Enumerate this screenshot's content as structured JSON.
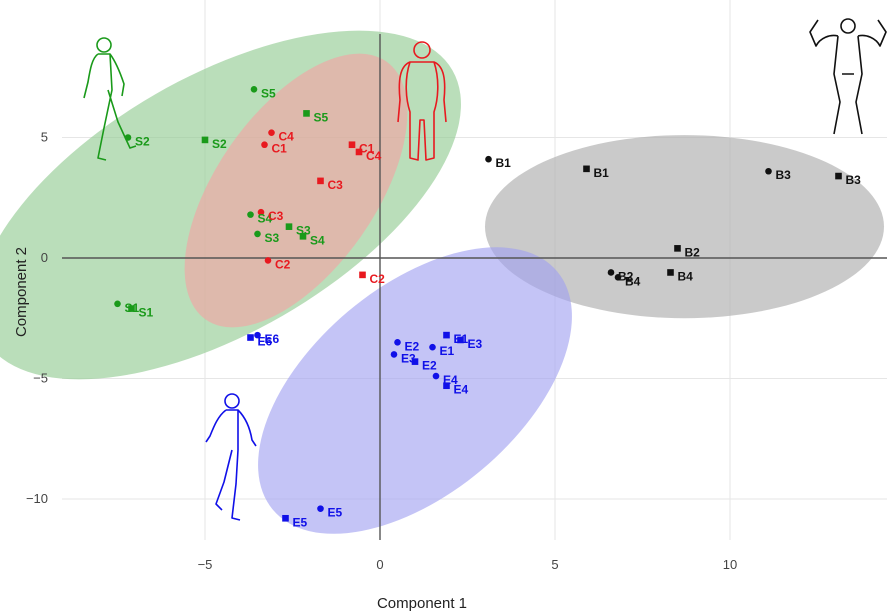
{
  "chart_data": {
    "type": "scatter",
    "title": "",
    "xlabel": "Component 1",
    "ylabel": "Component 2",
    "xlim": [
      -10.8,
      14.4
    ],
    "ylim": [
      -12.3,
      9.4
    ],
    "x_ticks": [
      -5,
      0,
      5,
      10
    ],
    "y_ticks": [
      -10,
      -5,
      0,
      5
    ],
    "x_tick_labels": [
      "−5",
      "0",
      "5",
      "10"
    ],
    "y_tick_labels": [
      "−10",
      "−5",
      "0",
      "5"
    ],
    "grid": true,
    "groups": [
      {
        "name": "S",
        "color": "#1a9a1a",
        "fill": "#8fca8f",
        "icon": "runner-icon",
        "ellipse": {
          "cx": -4.6,
          "cy": 2.2,
          "rx": 7.7,
          "ry": 5.3,
          "angle_deg": 30
        },
        "points": [
          {
            "label": "S1",
            "marker": "circle",
            "x": -7.5,
            "y": -1.9
          },
          {
            "label": "S1",
            "marker": "square",
            "x": -7.1,
            "y": -2.1
          },
          {
            "label": "S2",
            "marker": "circle",
            "x": -7.2,
            "y": 5.0
          },
          {
            "label": "S2",
            "marker": "square",
            "x": -5.0,
            "y": 4.9
          },
          {
            "label": "S3",
            "marker": "circle",
            "x": -3.5,
            "y": 1.0
          },
          {
            "label": "S3",
            "marker": "square",
            "x": -2.6,
            "y": 1.3
          },
          {
            "label": "S4",
            "marker": "circle",
            "x": -3.7,
            "y": 1.8
          },
          {
            "label": "S4",
            "marker": "square",
            "x": -2.2,
            "y": 0.9
          },
          {
            "label": "S5",
            "marker": "circle",
            "x": -3.6,
            "y": 7.0
          },
          {
            "label": "S5",
            "marker": "square",
            "x": -2.1,
            "y": 6.0
          }
        ]
      },
      {
        "name": "C",
        "color": "#e8191f",
        "fill": "#f4a3a3",
        "icon": "heavy-person-icon",
        "ellipse": {
          "cx": -2.4,
          "cy": 2.8,
          "rx": 4.5,
          "ry": 3.3,
          "angle_deg": 55
        },
        "points": [
          {
            "label": "C1",
            "marker": "circle",
            "x": -3.3,
            "y": 4.7
          },
          {
            "label": "C1",
            "marker": "square",
            "x": -0.8,
            "y": 4.7
          },
          {
            "label": "C2",
            "marker": "circle",
            "x": -3.2,
            "y": -0.1
          },
          {
            "label": "C2",
            "marker": "square",
            "x": -0.5,
            "y": -0.7
          },
          {
            "label": "C3",
            "marker": "circle",
            "x": -3.4,
            "y": 1.9
          },
          {
            "label": "C3",
            "marker": "square",
            "x": -1.7,
            "y": 3.2
          },
          {
            "label": "C4",
            "marker": "circle",
            "x": -3.1,
            "y": 5.2
          },
          {
            "label": "C4",
            "marker": "square",
            "x": -0.6,
            "y": 4.4
          }
        ]
      },
      {
        "name": "B",
        "color": "#111111",
        "fill": "#a9a9a9",
        "icon": "bodybuilder-icon",
        "ellipse": {
          "cx": 8.7,
          "cy": 1.3,
          "rx": 5.7,
          "ry": 3.8,
          "angle_deg": 0
        },
        "points": [
          {
            "label": "B1",
            "marker": "circle",
            "x": 3.1,
            "y": 4.1
          },
          {
            "label": "B1",
            "marker": "square",
            "x": 5.9,
            "y": 3.7
          },
          {
            "label": "B2",
            "marker": "circle",
            "x": 6.6,
            "y": -0.6
          },
          {
            "label": "B2",
            "marker": "square",
            "x": 8.5,
            "y": 0.4
          },
          {
            "label": "B3",
            "marker": "circle",
            "x": 11.1,
            "y": 3.6
          },
          {
            "label": "B3",
            "marker": "square",
            "x": 13.1,
            "y": 3.4
          },
          {
            "label": "B4",
            "marker": "circle",
            "x": 6.8,
            "y": -0.8
          },
          {
            "label": "B4",
            "marker": "square",
            "x": 8.3,
            "y": -0.6
          }
        ]
      },
      {
        "name": "E",
        "color": "#1010e8",
        "fill": "#a0a0f0",
        "icon": "endurance-runner-icon",
        "ellipse": {
          "cx": 1.0,
          "cy": -5.5,
          "rx": 5.3,
          "ry": 4.3,
          "angle_deg": 40
        },
        "points": [
          {
            "label": "E1",
            "marker": "circle",
            "x": 1.5,
            "y": -3.7
          },
          {
            "label": "E1",
            "marker": "square",
            "x": 1.9,
            "y": -3.2
          },
          {
            "label": "E2",
            "marker": "circle",
            "x": 0.5,
            "y": -3.5
          },
          {
            "label": "E2",
            "marker": "square",
            "x": 1.0,
            "y": -4.3
          },
          {
            "label": "E3",
            "marker": "circle",
            "x": 0.4,
            "y": -4.0
          },
          {
            "label": "E3",
            "marker": "square",
            "x": 2.3,
            "y": -3.4
          },
          {
            "label": "E4",
            "marker": "circle",
            "x": 1.6,
            "y": -4.9
          },
          {
            "label": "E4",
            "marker": "square",
            "x": 1.9,
            "y": -5.3
          },
          {
            "label": "E5",
            "marker": "circle",
            "x": -1.7,
            "y": -10.4
          },
          {
            "label": "E5",
            "marker": "square",
            "x": -2.7,
            "y": -10.8
          },
          {
            "label": "E6",
            "marker": "circle",
            "x": -3.5,
            "y": -3.2
          },
          {
            "label": "E6",
            "marker": "square",
            "x": -3.7,
            "y": -3.3
          }
        ]
      }
    ]
  }
}
